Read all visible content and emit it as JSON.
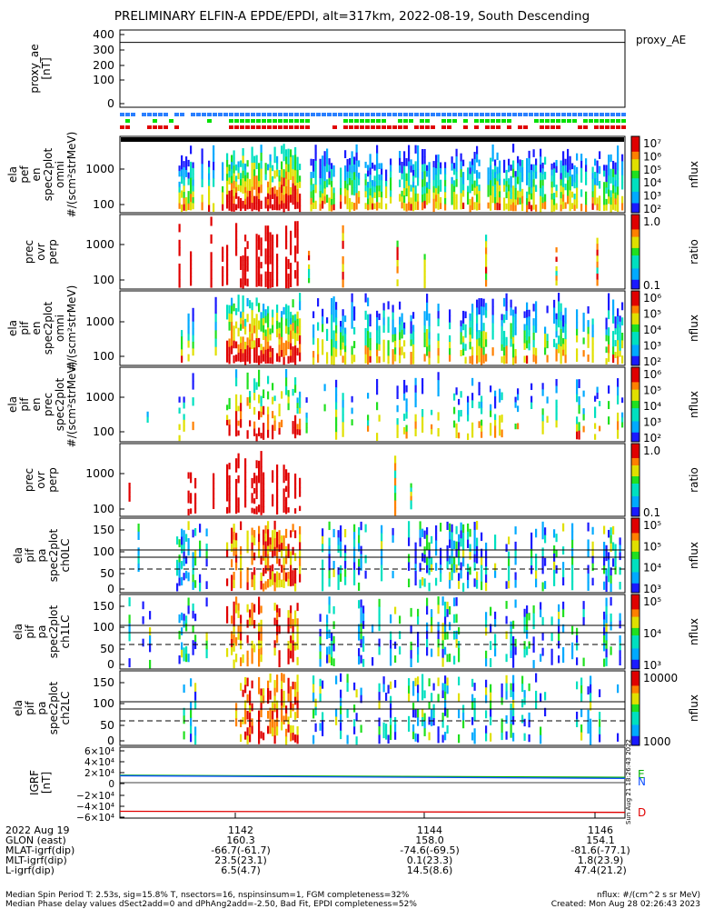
{
  "title": "PRELIMINARY ELFIN-A EPDE/EPDI, alt=317km, 2022-08-19, South Descending",
  "chart_data": [
    {
      "type": "line",
      "id": "ae",
      "ylabel_lines": [
        "proxy_ae",
        "[nT]"
      ],
      "legend": "proxy_AE",
      "ylim": [
        0,
        400
      ],
      "yticks": [
        "400",
        "300",
        "200",
        "100",
        "0"
      ],
      "series": [
        {
          "name": "proxy_AE",
          "values": [
            350
          ]
        }
      ]
    },
    {
      "type": "heatmap",
      "id": "ept",
      "ylabel_lines": [
        "ela",
        "pef",
        "en",
        "spec2plot",
        "omni",
        "#/(scm²strMeV)"
      ],
      "yticks": [
        "1000",
        "100"
      ],
      "colorbar": {
        "label": "nflux",
        "ticks": [
          "10⁷",
          "10⁶",
          "10⁵",
          "10⁴",
          "10³",
          "10²"
        ]
      }
    },
    {
      "type": "heatmap",
      "id": "ratio_e",
      "ylabel_lines": [
        "prec",
        "ovr",
        "perp"
      ],
      "yticks": [
        "1000",
        "100"
      ],
      "colorbar": {
        "label": "ratio",
        "ticks": [
          "1.0",
          "0.1"
        ]
      }
    },
    {
      "type": "heatmap",
      "id": "ipt",
      "ylabel_lines": [
        "ela",
        "pif",
        "en",
        "spec2plot",
        "omni",
        "#/(scm²strMeV)"
      ],
      "yticks": [
        "1000",
        "100"
      ],
      "colorbar": {
        "label": "nflux",
        "ticks": [
          "10⁶",
          "10⁵",
          "10⁴",
          "10³",
          "10²"
        ]
      }
    },
    {
      "type": "heatmap",
      "id": "iprec",
      "ylabel_lines": [
        "ela",
        "pif",
        "en",
        "prec",
        "spec2plot",
        "#/(scm²strMeV)"
      ],
      "yticks": [
        "1000",
        "100"
      ],
      "colorbar": {
        "label": "nflux",
        "ticks": [
          "10⁶",
          "10⁵",
          "10⁴",
          "10³",
          "10²"
        ]
      }
    },
    {
      "type": "heatmap",
      "id": "ratio_i",
      "ylabel_lines": [
        "prec",
        "ovr",
        "perp"
      ],
      "yticks": [
        "1000",
        "100"
      ],
      "colorbar": {
        "label": "ratio",
        "ticks": [
          "1.0",
          "0.1"
        ]
      }
    },
    {
      "type": "heatmap",
      "id": "pa0",
      "ylabel_lines": [
        "ela",
        "pif",
        "pa",
        "spec2plot",
        "ch0LC"
      ],
      "yticks": [
        "150",
        "100",
        "50",
        "0"
      ],
      "colorbar": {
        "label": "nflux",
        "ticks": [
          "10⁵",
          "10⁵",
          "10⁴",
          "10³"
        ]
      }
    },
    {
      "type": "heatmap",
      "id": "pa1",
      "ylabel_lines": [
        "ela",
        "pif",
        "pa",
        "spec2plot",
        "ch1LC"
      ],
      "yticks": [
        "150",
        "100",
        "50",
        "0"
      ],
      "colorbar": {
        "label": "nflux",
        "ticks": [
          "10⁵",
          "10⁴",
          "10³"
        ]
      }
    },
    {
      "type": "heatmap",
      "id": "pa2",
      "ylabel_lines": [
        "ela",
        "pif",
        "pa",
        "spec2plot",
        "ch2LC"
      ],
      "yticks": [
        "150",
        "100",
        "50",
        "0"
      ],
      "colorbar": {
        "label": "nflux",
        "ticks": [
          "10000",
          "1000"
        ]
      }
    },
    {
      "type": "line",
      "id": "igrf",
      "ylabel_lines": [
        "IGRF",
        "[nT]"
      ],
      "yticks": [
        "6×10⁴",
        "4×10⁴",
        "2×10⁴",
        "0",
        "−2×10⁴",
        "−4×10⁴",
        "−6×10⁴"
      ],
      "ylim": [
        -60000,
        60000
      ],
      "series": [
        {
          "name": "E",
          "color": "#00b000",
          "values": [
            14000,
            10000
          ]
        },
        {
          "name": "N",
          "color": "#1050ff",
          "values": [
            13000,
            8000
          ]
        },
        {
          "name": "D",
          "color": "#e00000",
          "values": [
            -54000,
            -56000
          ]
        }
      ]
    }
  ],
  "side_note": "Sun Aug 21 18:26:43 2022",
  "footer": {
    "rows": [
      {
        "label": "2022 Aug 19",
        "values": [
          "1142",
          "1144",
          "1146"
        ]
      },
      {
        "label": "GLON (east)",
        "values": [
          "160.3",
          "158.0",
          "154.1"
        ]
      },
      {
        "label": "MLAT-igrf(dip)",
        "values": [
          "-66.7(-61.7)",
          "-74.6(-69.5)",
          "-81.6(-77.1)"
        ]
      },
      {
        "label": "MLT-igrf(dip)",
        "values": [
          "23.5(23.1)",
          "0.1(23.3)",
          "1.8(23.9)"
        ]
      },
      {
        "label": "L-igrf(dip)",
        "values": [
          "6.5(4.7)",
          "14.5(8.6)",
          "47.4(21.2)"
        ]
      }
    ]
  },
  "notes": {
    "line1_left": "Median Spin Period T: 2.53s, sig=15.8% T, nsectors=16, nspinsinsum=1, FGM completeness=32%",
    "line1_right": "nflux: #/(cm^2 s sr MeV)",
    "line2_left": "Median Phase delay values dSect2add=0 and dPhAng2add=-2.50, Bad Fit, EPDI completeness=52%",
    "line2_right": "Created: Mon Aug 28 02:26:43 2023"
  },
  "colors": {
    "blue": "#2a7fff",
    "green": "#00e000",
    "red": "#e00000"
  }
}
